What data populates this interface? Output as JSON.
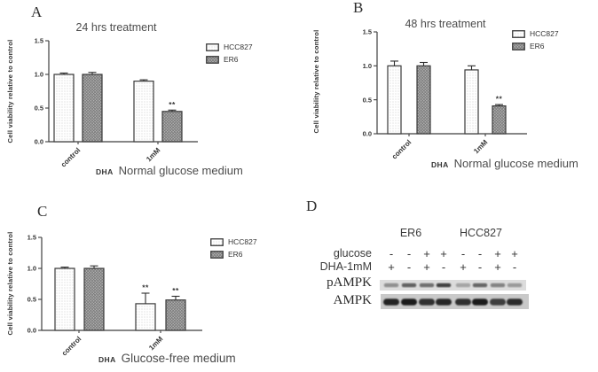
{
  "chart_data": [
    {
      "panel": "A",
      "type": "bar",
      "title": "24 hrs treatment",
      "ylabel": "Cell viability relative to control",
      "xlabel_prefix": "DHA",
      "xlabel": "Normal glucose medium",
      "categories": [
        "control",
        "1mM"
      ],
      "series": [
        {
          "name": "HCC827",
          "values": [
            1.0,
            0.9
          ],
          "errors": [
            0.02,
            0.02
          ],
          "sig": [
            "",
            ""
          ]
        },
        {
          "name": "ER6",
          "values": [
            1.0,
            0.45
          ],
          "errors": [
            0.03,
            0.02
          ],
          "sig": [
            "",
            "**"
          ]
        }
      ],
      "ylim": [
        0,
        1.5
      ],
      "yticks": [
        "0.0",
        "0.5",
        "1.0",
        "1.5"
      ],
      "legend": [
        "HCC827",
        "ER6"
      ],
      "legend_position": "right",
      "grid": false
    },
    {
      "panel": "B",
      "type": "bar",
      "title": "48 hrs treatment",
      "ylabel": "Cell viability relative to control",
      "xlabel_prefix": "DHA",
      "xlabel": "Normal glucose medium",
      "categories": [
        "control",
        "1mM"
      ],
      "series": [
        {
          "name": "HCC827",
          "values": [
            1.0,
            0.94
          ],
          "errors": [
            0.07,
            0.06
          ],
          "sig": [
            "",
            ""
          ]
        },
        {
          "name": "ER6",
          "values": [
            1.0,
            0.41
          ],
          "errors": [
            0.05,
            0.02
          ],
          "sig": [
            "",
            "**"
          ]
        }
      ],
      "ylim": [
        0,
        1.5
      ],
      "yticks": [
        "0.0",
        "0.5",
        "1.0",
        "1.5"
      ],
      "legend": [
        "HCC827",
        "ER6"
      ],
      "legend_position": "right",
      "grid": false
    },
    {
      "panel": "C",
      "type": "bar",
      "title": "",
      "ylabel": "Cell viability relative to control",
      "xlabel_prefix": "DHA",
      "xlabel": "Glucose-free medium",
      "categories": [
        "control",
        "1mM"
      ],
      "series": [
        {
          "name": "HCC827",
          "values": [
            1.0,
            0.43
          ],
          "errors": [
            0.02,
            0.17
          ],
          "sig": [
            "",
            "**"
          ]
        },
        {
          "name": "ER6",
          "values": [
            1.0,
            0.49
          ],
          "errors": [
            0.04,
            0.06
          ],
          "sig": [
            "",
            "**"
          ]
        }
      ],
      "ylim": [
        0,
        1.5
      ],
      "yticks": [
        "0.0",
        "0.5",
        "1.0",
        "1.5"
      ],
      "legend": [
        "HCC827",
        "ER6"
      ],
      "legend_position": "right",
      "grid": false
    }
  ],
  "blot": {
    "panel": "D",
    "group_headers": [
      "ER6",
      "HCC827"
    ],
    "condition_rows": [
      {
        "label": "glucose",
        "signs": [
          "-",
          "-",
          "+",
          "+",
          "-",
          "-",
          "+",
          "+"
        ]
      },
      {
        "label": "DHA-1mM",
        "signs": [
          "+",
          "-",
          "+",
          "-",
          "+",
          "-",
          "+",
          "-"
        ]
      }
    ],
    "band_rows": [
      {
        "label": "pAMPK",
        "intensities": [
          0.38,
          0.62,
          0.55,
          0.78,
          0.28,
          0.6,
          0.45,
          0.33
        ]
      },
      {
        "label": "AMPK",
        "intensities": [
          0.92,
          0.97,
          0.85,
          0.9,
          0.85,
          0.97,
          0.78,
          0.88
        ]
      }
    ]
  },
  "colors": {
    "axis": "#3f3f3f",
    "text": "#4c4c4c",
    "bar_hcc827_fill": "#ffffff",
    "bar_er6_fill": "#b5b5b5",
    "blot_strip_light": "#dcdcdc",
    "blot_strip_dark": "#c9c9c9"
  }
}
